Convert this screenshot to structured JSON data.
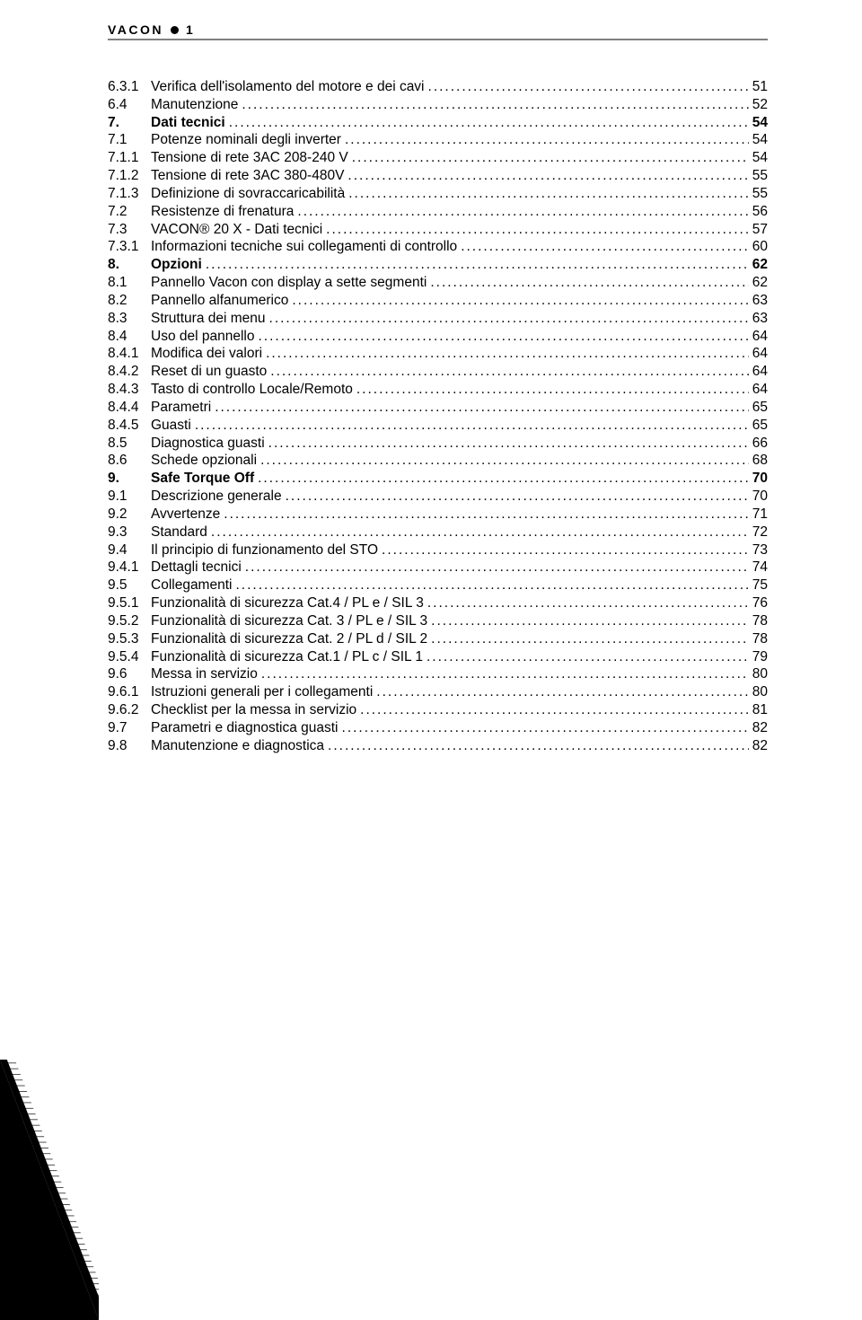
{
  "header": {
    "brand": "VACON",
    "page_number": "1"
  },
  "toc": [
    {
      "num": "6.3.1",
      "title": "Verifica dell'isolamento del motore e dei cavi",
      "page": "51",
      "bold": false
    },
    {
      "num": "6.4",
      "title": "Manutenzione",
      "page": "52",
      "bold": false
    },
    {
      "num": "7.",
      "title": "Dati tecnici",
      "page": "54",
      "bold": true
    },
    {
      "num": "7.1",
      "title": "Potenze nominali degli inverter",
      "page": "54",
      "bold": false
    },
    {
      "num": "7.1.1",
      "title": "Tensione di rete 3AC 208-240 V",
      "page": "54",
      "bold": false
    },
    {
      "num": "7.1.2",
      "title": "Tensione di rete 3AC 380-480V",
      "page": "55",
      "bold": false
    },
    {
      "num": "7.1.3",
      "title": "Definizione di sovraccaricabilità",
      "page": "55",
      "bold": false
    },
    {
      "num": "7.2",
      "title": "Resistenze di frenatura",
      "page": "56",
      "bold": false
    },
    {
      "num": "7.3",
      "title": "VACON® 20 X - Dati tecnici",
      "page": "57",
      "bold": false
    },
    {
      "num": "7.3.1",
      "title": "Informazioni tecniche sui collegamenti di controllo",
      "page": "60",
      "bold": false
    },
    {
      "num": "8.",
      "title": "Opzioni",
      "page": "62",
      "bold": true
    },
    {
      "num": "8.1",
      "title": "Pannello Vacon con display a sette segmenti",
      "page": "62",
      "bold": false
    },
    {
      "num": "8.2",
      "title": "Pannello alfanumerico",
      "page": "63",
      "bold": false
    },
    {
      "num": "8.3",
      "title": "Struttura dei menu",
      "page": "63",
      "bold": false
    },
    {
      "num": "8.4",
      "title": "Uso del pannello",
      "page": "64",
      "bold": false
    },
    {
      "num": "8.4.1",
      "title": "Modifica dei valori",
      "page": "64",
      "bold": false
    },
    {
      "num": "8.4.2",
      "title": "Reset di un guasto",
      "page": "64",
      "bold": false
    },
    {
      "num": "8.4.3",
      "title": "Tasto di controllo Locale/Remoto",
      "page": "64",
      "bold": false
    },
    {
      "num": "8.4.4",
      "title": "Parametri",
      "page": "65",
      "bold": false
    },
    {
      "num": "8.4.5",
      "title": "Guasti",
      "page": "65",
      "bold": false
    },
    {
      "num": "8.5",
      "title": "Diagnostica guasti",
      "page": "66",
      "bold": false
    },
    {
      "num": "8.6",
      "title": "Schede opzionali",
      "page": "68",
      "bold": false
    },
    {
      "num": "9.",
      "title": "Safe Torque Off",
      "page": "70",
      "bold": true
    },
    {
      "num": "9.1",
      "title": "Descrizione generale",
      "page": "70",
      "bold": false
    },
    {
      "num": "9.2",
      "title": "Avvertenze",
      "page": "71",
      "bold": false
    },
    {
      "num": "9.3",
      "title": "Standard",
      "page": "72",
      "bold": false
    },
    {
      "num": "9.4",
      "title": "Il principio di funzionamento del STO",
      "page": "73",
      "bold": false
    },
    {
      "num": "9.4.1",
      "title": "Dettagli tecnici",
      "page": "74",
      "bold": false
    },
    {
      "num": "9.5",
      "title": "Collegamenti",
      "page": "75",
      "bold": false
    },
    {
      "num": "9.5.1",
      "title": "Funzionalità di sicurezza Cat.4 / PL e / SIL 3",
      "page": "76",
      "bold": false
    },
    {
      "num": "9.5.2",
      "title": "Funzionalità di sicurezza Cat. 3 / PL e / SIL 3",
      "page": "78",
      "bold": false
    },
    {
      "num": "9.5.3",
      "title": "Funzionalità di sicurezza Cat. 2 / PL d / SIL 2",
      "page": "78",
      "bold": false
    },
    {
      "num": "9.5.4",
      "title": "Funzionalità di sicurezza Cat.1 / PL c / SIL 1",
      "page": "79",
      "bold": false
    },
    {
      "num": "9.6",
      "title": "Messa in servizio",
      "page": "80",
      "bold": false
    },
    {
      "num": "9.6.1",
      "title": "Istruzioni generali per i collegamenti",
      "page": "80",
      "bold": false
    },
    {
      "num": "9.6.2",
      "title": "Checklist per la messa in servizio",
      "page": "81",
      "bold": false
    },
    {
      "num": "9.7",
      "title": "Parametri e diagnostica guasti",
      "page": "82",
      "bold": false
    },
    {
      "num": "9.8",
      "title": "Manutenzione e diagnostica",
      "page": "82",
      "bold": false
    }
  ],
  "colors": {
    "text": "#000000",
    "background": "#ffffff",
    "rule": "#808080"
  }
}
